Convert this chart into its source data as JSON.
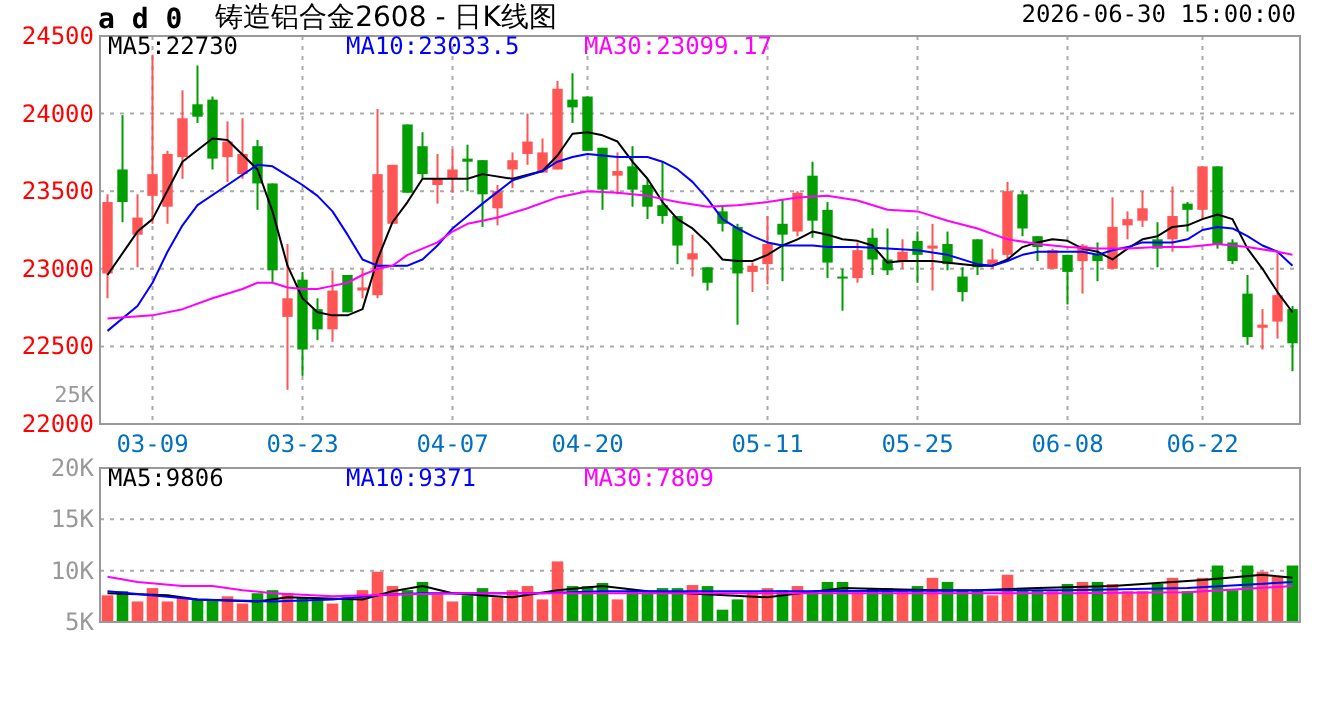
{
  "chart_data": [
    {
      "type": "candlestick",
      "title": "铸造铝合金2608 - 日K线图",
      "annotations": [
        "a d 0",
        "2026-06-30 15:00:00",
        "25K"
      ],
      "categories": [
        null,
        null,
        null,
        "03-09",
        null,
        null,
        null,
        null,
        null,
        null,
        null,
        null,
        null,
        "03-23",
        null,
        null,
        null,
        null,
        null,
        null,
        null,
        null,
        null,
        "04-07",
        null,
        null,
        null,
        null,
        null,
        null,
        null,
        null,
        "04-20",
        null,
        null,
        null,
        null,
        null,
        null,
        null,
        null,
        null,
        null,
        null,
        "05-11",
        null,
        null,
        null,
        null,
        null,
        null,
        null,
        null,
        null,
        "05-25",
        null,
        null,
        null,
        null,
        null,
        null,
        null,
        null,
        null,
        "06-08",
        null,
        null,
        null,
        null,
        null,
        null,
        null,
        null,
        "06-22",
        null,
        null,
        null,
        null,
        null,
        null
      ],
      "ohlc": [
        [
          22970,
          23480,
          22810,
          23430
        ],
        [
          23640,
          23990,
          23300,
          23430
        ],
        [
          23220,
          23480,
          23010,
          23330
        ],
        [
          23470,
          24380,
          23290,
          23610
        ],
        [
          23400,
          23760,
          23290,
          23740
        ],
        [
          23720,
          24150,
          23580,
          23970
        ],
        [
          24060,
          24310,
          23940,
          23980
        ],
        [
          24090,
          24110,
          23640,
          23710
        ],
        [
          23720,
          23950,
          23560,
          23820
        ],
        [
          23610,
          23970,
          23580,
          23740
        ],
        [
          23790,
          23830,
          23380,
          23550
        ],
        [
          23550,
          23550,
          22910,
          22990
        ],
        [
          22690,
          23160,
          22220,
          22810
        ],
        [
          22930,
          22980,
          22310,
          22480
        ],
        [
          22740,
          22810,
          22540,
          22610
        ],
        [
          22610,
          22990,
          22530,
          22860
        ],
        [
          22960,
          22960,
          22720,
          22720
        ],
        [
          22860,
          23000,
          22810,
          22880
        ],
        [
          22830,
          24030,
          22810,
          23610
        ],
        [
          23290,
          23670,
          23290,
          23670
        ],
        [
          23930,
          23930,
          23490,
          23490
        ],
        [
          23790,
          23880,
          23580,
          23610
        ],
        [
          23540,
          23740,
          23420,
          23580
        ],
        [
          23580,
          23770,
          23490,
          23640
        ],
        [
          23710,
          23800,
          23500,
          23690
        ],
        [
          23700,
          23700,
          23270,
          23480
        ],
        [
          23390,
          23540,
          23280,
          23500
        ],
        [
          23640,
          23750,
          23520,
          23700
        ],
        [
          23740,
          24000,
          23670,
          23820
        ],
        [
          23620,
          23840,
          23620,
          23750
        ],
        [
          23640,
          24210,
          23640,
          24160
        ],
        [
          24090,
          24260,
          23940,
          24040
        ],
        [
          24110,
          24110,
          23760,
          23760
        ],
        [
          23780,
          23780,
          23380,
          23510
        ],
        [
          23600,
          23750,
          23480,
          23630
        ],
        [
          23660,
          23790,
          23400,
          23510
        ],
        [
          23540,
          23580,
          23320,
          23400
        ],
        [
          23410,
          23690,
          23290,
          23340
        ],
        [
          23340,
          23340,
          23030,
          23150
        ],
        [
          23060,
          23220,
          22950,
          23100
        ],
        [
          23010,
          23010,
          22860,
          22910
        ],
        [
          23370,
          23400,
          23240,
          23290
        ],
        [
          23270,
          23290,
          22640,
          22970
        ],
        [
          22980,
          23040,
          22850,
          23020
        ],
        [
          23030,
          23340,
          22900,
          23160
        ],
        [
          23290,
          23450,
          22920,
          23220
        ],
        [
          23240,
          23500,
          23210,
          23490
        ],
        [
          23600,
          23690,
          23200,
          23310
        ],
        [
          23380,
          23430,
          22940,
          23040
        ],
        [
          22950,
          23000,
          22730,
          22940
        ],
        [
          22940,
          23170,
          22910,
          23120
        ],
        [
          23200,
          23260,
          22960,
          23060
        ],
        [
          23060,
          23260,
          22960,
          22990
        ],
        [
          23050,
          23190,
          23000,
          23110
        ],
        [
          23180,
          23240,
          22910,
          23090
        ],
        [
          23130,
          23290,
          22860,
          23150
        ],
        [
          23160,
          23240,
          22990,
          23030
        ],
        [
          22950,
          23010,
          22790,
          22850
        ],
        [
          23190,
          23190,
          22960,
          23010
        ],
        [
          23030,
          23130,
          23000,
          23060
        ],
        [
          23090,
          23560,
          23050,
          23500
        ],
        [
          23480,
          23500,
          23210,
          23260
        ],
        [
          23210,
          23210,
          23050,
          23140
        ],
        [
          23000,
          23130,
          23000,
          23120
        ],
        [
          23090,
          23090,
          22770,
          22980
        ],
        [
          23050,
          23160,
          22840,
          23150
        ],
        [
          23090,
          23170,
          22920,
          23050
        ],
        [
          23000,
          23460,
          23000,
          23270
        ],
        [
          23280,
          23370,
          23190,
          23320
        ],
        [
          23310,
          23500,
          23270,
          23390
        ],
        [
          23190,
          23300,
          23010,
          23130
        ],
        [
          23190,
          23530,
          23110,
          23340
        ],
        [
          23420,
          23430,
          23240,
          23380
        ],
        [
          23380,
          23660,
          23320,
          23660
        ],
        [
          23660,
          23660,
          23130,
          23160
        ],
        [
          23170,
          23190,
          23030,
          23050
        ],
        [
          22840,
          22960,
          22510,
          22560
        ],
        [
          22620,
          22740,
          22480,
          22640
        ],
        [
          22660,
          23100,
          22550,
          22830
        ],
        [
          22740,
          22760,
          22340,
          22520
        ]
      ],
      "colors": [
        "#ff5555",
        "#009e00",
        "#ff5555",
        "#ff5555",
        "#ff5555",
        "#ff5555",
        "#009e00",
        "#009e00",
        "#ff5555",
        "#ff5555",
        "#009e00",
        "#009e00",
        "#ff5555",
        "#009e00",
        "#009e00",
        "#ff5555",
        "#009e00",
        "#ff5555",
        "#ff5555",
        "#ff5555",
        "#009e00",
        "#009e00",
        "#ff5555",
        "#ff5555",
        "#009e00",
        "#009e00",
        "#ff5555",
        "#ff5555",
        "#ff5555",
        "#ff5555",
        "#ff5555",
        "#009e00",
        "#009e00",
        "#009e00",
        "#ff5555",
        "#009e00",
        "#009e00",
        "#009e00",
        "#009e00",
        "#ff5555",
        "#009e00",
        "#009e00",
        "#009e00",
        "#ff5555",
        "#ff5555",
        "#009e00",
        "#ff5555",
        "#009e00",
        "#009e00",
        "#009e00",
        "#ff5555",
        "#009e00",
        "#009e00",
        "#ff5555",
        "#009e00",
        "#ff5555",
        "#009e00",
        "#009e00",
        "#009e00",
        "#ff5555",
        "#ff5555",
        "#009e00",
        "#009e00",
        "#ff5555",
        "#009e00",
        "#ff5555",
        "#009e00",
        "#ff5555",
        "#ff5555",
        "#ff5555",
        "#009e00",
        "#ff5555",
        "#009e00",
        "#ff5555",
        "#009e00",
        "#009e00",
        "#009e00",
        "#ff5555",
        "#ff5555",
        "#009e00"
      ],
      "series": [
        {
          "type": "line",
          "name": "MA5:22730",
          "color": "#000000",
          "values": [
            22960,
            null,
            23240,
            23320,
            null,
            23690,
            null,
            23840,
            23830,
            null,
            23640,
            23370,
            23020,
            22810,
            22720,
            22700,
            22700,
            22740,
            23060,
            23300,
            23430,
            23580,
            23580,
            23580,
            23580,
            23610,
            null,
            23580,
            null,
            23630,
            23730,
            23870,
            23880,
            23860,
            23820,
            23690,
            23580,
            23430,
            23320,
            23260,
            23170,
            23060,
            23050,
            23050,
            23090,
            23150,
            23190,
            23240,
            23220,
            23190,
            23180,
            23150,
            23040,
            23050,
            null,
            23050,
            null,
            23030,
            23020,
            23020,
            23060,
            23140,
            23170,
            23190,
            23180,
            23130,
            23110,
            23060,
            23130,
            23190,
            23210,
            23270,
            23280,
            23320,
            23350,
            23320,
            23130,
            23000,
            22850,
            22720
          ]
        },
        {
          "type": "line",
          "name": "MA10:23033.5",
          "color": "#0000ff",
          "values": [
            22600,
            null,
            22760,
            22910,
            23110,
            23280,
            23410,
            null,
            23540,
            null,
            23670,
            23660,
            23600,
            23540,
            23470,
            23370,
            23220,
            23060,
            23020,
            23020,
            23020,
            23060,
            23150,
            23260,
            23340,
            23420,
            null,
            23570,
            null,
            23630,
            23690,
            23720,
            23740,
            23730,
            23720,
            23720,
            23720,
            23690,
            23640,
            23560,
            23450,
            23320,
            23260,
            23210,
            23170,
            23150,
            23150,
            23150,
            23140,
            null,
            23140,
            null,
            23130,
            null,
            23120,
            null,
            23090,
            null,
            23030,
            23020,
            23050,
            23090,
            23110,
            23110,
            null,
            23110,
            23090,
            23120,
            23140,
            23170,
            null,
            23170,
            23190,
            23250,
            23270,
            23260,
            23210,
            23150,
            23110,
            23020
          ]
        },
        {
          "type": "line",
          "name": "MA30:23099.17",
          "color": "#ff00ff",
          "values": [
            22680,
            null,
            null,
            22700,
            null,
            22740,
            null,
            22810,
            null,
            22870,
            22910,
            22910,
            22880,
            22870,
            22870,
            22890,
            22910,
            22960,
            23000,
            23020,
            23090,
            23130,
            23170,
            23240,
            23290,
            23310,
            23330,
            null,
            23390,
            null,
            23460,
            null,
            23500,
            null,
            23490,
            null,
            23470,
            null,
            23430,
            null,
            23400,
            null,
            23410,
            null,
            23430,
            null,
            23460,
            null,
            23470,
            null,
            23440,
            null,
            23380,
            null,
            23370,
            null,
            23310,
            null,
            23260,
            null,
            23190,
            null,
            23160,
            null,
            23140,
            null,
            23130,
            null,
            23130,
            null,
            23140,
            null,
            23140,
            null,
            23160,
            null,
            23140,
            null,
            23110,
            23090
          ]
        }
      ],
      "ylim": [
        22000,
        24500
      ],
      "yticks": [
        22000,
        22500,
        23000,
        23500,
        24000,
        24500
      ],
      "grid": true,
      "legend": "top left"
    },
    {
      "type": "bar",
      "categories": [
        null,
        null,
        null,
        null,
        null,
        null,
        null,
        null,
        null,
        null,
        null,
        null,
        null,
        null,
        null,
        null,
        null,
        null,
        null,
        null,
        null,
        null,
        null,
        null,
        null,
        null,
        null,
        null,
        null,
        null,
        null,
        null,
        null,
        null,
        null,
        null,
        null,
        null,
        null,
        null,
        null,
        null,
        null,
        null,
        null,
        null,
        null,
        null,
        null,
        null,
        null,
        null,
        null,
        null,
        null,
        null,
        null,
        null,
        null,
        null,
        null,
        null,
        null,
        null,
        null,
        null,
        null,
        null,
        null,
        null,
        null,
        null,
        null,
        null,
        null,
        null,
        null,
        null,
        null,
        null
      ],
      "series": [
        {
          "type": "bar",
          "values": [
            7600,
            8000,
            7000,
            8300,
            7000,
            7400,
            7200,
            7200,
            7500,
            6800,
            7800,
            8100,
            7800,
            7400,
            7200,
            6800,
            7400,
            8100,
            9900,
            8500,
            8100,
            8900,
            7800,
            7000,
            7600,
            8300,
            7400,
            8100,
            8500,
            7200,
            10900,
            8500,
            8500,
            8800,
            7200,
            8100,
            8000,
            8300,
            8300,
            8600,
            8500,
            6200,
            7200,
            8000,
            8300,
            8100,
            8500,
            8000,
            8900,
            8900,
            8100,
            8300,
            8300,
            8100,
            8500,
            9300,
            8900,
            8100,
            8100,
            7600,
            9600,
            8300,
            8100,
            8000,
            8700,
            8900,
            8900,
            8700,
            8000,
            8000,
            8700,
            9300,
            8000,
            9300,
            10500,
            8100,
            10500,
            9900,
            9400,
            10500
          ],
          "colors": [
            "#ff5555",
            "#009e00",
            "#ff5555",
            "#ff5555",
            "#ff5555",
            "#ff5555",
            "#009e00",
            "#009e00",
            "#ff5555",
            "#ff5555",
            "#009e00",
            "#009e00",
            "#ff5555",
            "#009e00",
            "#009e00",
            "#ff5555",
            "#009e00",
            "#ff5555",
            "#ff5555",
            "#ff5555",
            "#009e00",
            "#009e00",
            "#ff5555",
            "#ff5555",
            "#009e00",
            "#009e00",
            "#ff5555",
            "#ff5555",
            "#ff5555",
            "#ff5555",
            "#ff5555",
            "#009e00",
            "#009e00",
            "#009e00",
            "#ff5555",
            "#009e00",
            "#009e00",
            "#009e00",
            "#009e00",
            "#ff5555",
            "#009e00",
            "#009e00",
            "#009e00",
            "#ff5555",
            "#ff5555",
            "#009e00",
            "#ff5555",
            "#009e00",
            "#009e00",
            "#009e00",
            "#ff5555",
            "#009e00",
            "#009e00",
            "#ff5555",
            "#009e00",
            "#ff5555",
            "#009e00",
            "#009e00",
            "#009e00",
            "#ff5555",
            "#ff5555",
            "#009e00",
            "#009e00",
            "#ff5555",
            "#009e00",
            "#ff5555",
            "#009e00",
            "#ff5555",
            "#ff5555",
            "#ff5555",
            "#009e00",
            "#ff5555",
            "#009e00",
            "#ff5555",
            "#009e00",
            "#009e00",
            "#009e00",
            "#ff5555",
            "#ff5555",
            "#009e00"
          ]
        },
        {
          "type": "line",
          "name": "MA5:9806",
          "color": "#000000",
          "values": [
            7800,
            null,
            null,
            null,
            7600,
            null,
            7200,
            null,
            null,
            null,
            7000,
            null,
            7400,
            null,
            null,
            null,
            null,
            7200,
            null,
            8000,
            null,
            8500,
            null,
            7800,
            null,
            null,
            null,
            7400,
            null,
            null,
            8100,
            null,
            null,
            8500,
            null,
            null,
            8000,
            null,
            null,
            null,
            null,
            null,
            null,
            null,
            7400,
            null,
            null,
            null,
            null,
            8300,
            null,
            null,
            null,
            null,
            null,
            8100,
            null,
            null,
            8100,
            null,
            null,
            null,
            8300,
            null,
            null,
            null,
            null,
            8500,
            null,
            null,
            null,
            null,
            null,
            9100,
            null,
            null,
            null,
            9600,
            null,
            9300
          ]
        },
        {
          "type": "line",
          "name": "MA10:9371",
          "color": "#0000ff",
          "values": [
            8000,
            null,
            null,
            null,
            null,
            null,
            7200,
            null,
            null,
            null,
            null,
            7000,
            null,
            null,
            null,
            7200,
            null,
            null,
            7600,
            null,
            null,
            7800,
            null,
            null,
            7800,
            null,
            null,
            null,
            null,
            7800,
            null,
            null,
            null,
            8000,
            null,
            null,
            null,
            8000,
            null,
            null,
            null,
            null,
            null,
            null,
            null,
            null,
            8000,
            null,
            null,
            null,
            null,
            null,
            null,
            null,
            null,
            null,
            null,
            null,
            null,
            null,
            null,
            null,
            null,
            null,
            8100,
            null,
            null,
            null,
            null,
            null,
            null,
            null,
            8300,
            null,
            null,
            null,
            null,
            null,
            null,
            8900
          ]
        },
        {
          "type": "line",
          "name": "MA30:7809",
          "color": "#ff00ff",
          "values": [
            9400,
            null,
            8900,
            null,
            null,
            8500,
            null,
            8500,
            null,
            8100,
            null,
            7800,
            null,
            null,
            null,
            7500,
            null,
            null,
            null,
            null,
            7700,
            null,
            null,
            null,
            7800,
            null,
            null,
            null,
            null,
            7800,
            null,
            null,
            null,
            null,
            null,
            null,
            null,
            7800,
            null,
            null,
            null,
            null,
            null,
            null,
            null,
            null,
            7800,
            null,
            null,
            null,
            null,
            null,
            null,
            null,
            null,
            7800,
            null,
            null,
            null,
            null,
            null,
            null,
            null,
            null,
            7800,
            null,
            null,
            null,
            null,
            null,
            null,
            null,
            7900,
            null,
            null,
            null,
            null,
            null,
            null,
            8500
          ]
        }
      ],
      "ylim": [
        5000,
        20000
      ],
      "yticks": [
        {
          "value": 5000,
          "label": "5K"
        },
        {
          "value": 10000,
          "label": "10K"
        },
        {
          "value": 15000,
          "label": "15K"
        },
        {
          "value": 20000,
          "label": "20K"
        }
      ],
      "grid": "y",
      "tick_labels": "y",
      "legend": "top left"
    }
  ]
}
